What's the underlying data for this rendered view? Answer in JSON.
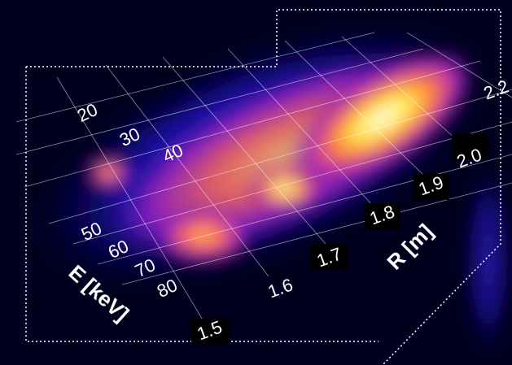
{
  "energy_axis": {
    "label": "E [keV]",
    "ticks": [
      "20",
      "30",
      "40",
      "50",
      "60",
      "70",
      "80"
    ]
  },
  "radius_axis": {
    "label": "R [m]",
    "ticks": [
      "1.5",
      "1.6",
      "1.7",
      "1.8",
      "1.9",
      "2.0",
      "2.2"
    ]
  }
}
